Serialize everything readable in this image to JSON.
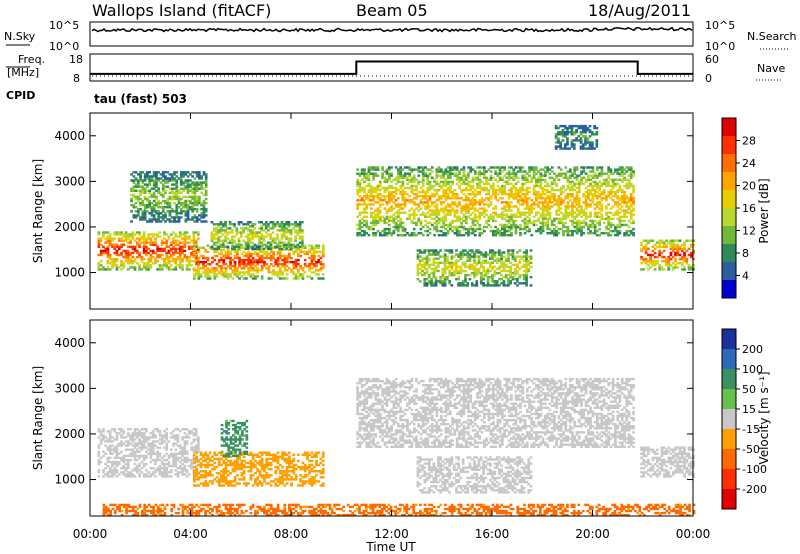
{
  "header": {
    "title": "Wallops Island (fitACF)",
    "beam": "Beam 05",
    "date": "18/Aug/2011"
  },
  "noise_panel": {
    "left_label": "N.Sky",
    "right_label": "N.Search",
    "left_ticks": [
      "10^5",
      "10^0"
    ],
    "right_ticks": [
      "10^5",
      "10^0"
    ]
  },
  "freq_panel": {
    "left_label": "Freq.",
    "left_unit": "[MHz]",
    "left_ticks": [
      "18",
      "8"
    ],
    "right_label": "Nave",
    "right_ticks": [
      "60",
      "0"
    ],
    "cpid_label": "CPID",
    "cpid_value": "tau (fast) 503"
  },
  "chart_data": [
    {
      "type": "heatmap",
      "name": "power",
      "xlabel": "",
      "ylabel": "Slant Range [km]",
      "xlim": [
        0,
        24
      ],
      "ylim": [
        200,
        4500
      ],
      "yticks": [
        "1000",
        "2000",
        "3000",
        "4000"
      ],
      "colorbar": {
        "label": "Power [dB]",
        "ticks": [
          "28",
          "24",
          "20",
          "16",
          "12",
          "8",
          "4"
        ],
        "colors": [
          "#e00000",
          "#ff3000",
          "#ff7000",
          "#ffa500",
          "#e8d000",
          "#b8d830",
          "#70b838",
          "#2e8b57",
          "#2a5e9c",
          "#0000cd"
        ]
      },
      "echo_regions": [
        {
          "t": [
            0.3,
            4.3
          ],
          "range": [
            1050,
            1900
          ],
          "peak_db": 28
        },
        {
          "t": [
            1.6,
            4.6
          ],
          "range": [
            2100,
            3200
          ],
          "peak_db": 12
        },
        {
          "t": [
            4.1,
            9.3
          ],
          "range": [
            850,
            1600
          ],
          "peak_db": 28
        },
        {
          "t": [
            4.8,
            8.4
          ],
          "range": [
            1500,
            2100
          ],
          "peak_db": 16
        },
        {
          "t": [
            10.6,
            21.6
          ],
          "range": [
            1800,
            3300
          ],
          "peak_db": 20
        },
        {
          "t": [
            13.0,
            17.5
          ],
          "range": [
            700,
            1500
          ],
          "peak_db": 16
        },
        {
          "t": [
            18.5,
            20.2
          ],
          "range": [
            3700,
            4200
          ],
          "peak_db": 8
        },
        {
          "t": [
            21.9,
            24.0
          ],
          "range": [
            1050,
            1700
          ],
          "peak_db": 28
        }
      ]
    },
    {
      "type": "heatmap",
      "name": "velocity",
      "xlabel": "Time UT",
      "ylabel": "Slant Range [km]",
      "xlim": [
        0,
        24
      ],
      "ylim": [
        200,
        4500
      ],
      "xticks": [
        "00:00",
        "04:00",
        "08:00",
        "12:00",
        "16:00",
        "20:00",
        "00:00"
      ],
      "yticks": [
        "1000",
        "2000",
        "3000",
        "4000"
      ],
      "colorbar": {
        "label": "Velocity [m s⁻¹]",
        "ticks": [
          "200",
          "100",
          "50",
          "15",
          "-15",
          "-50",
          "-100",
          "-200"
        ],
        "colors": [
          "#1c2f9a",
          "#2a6ab8",
          "#3a9060",
          "#66c24a",
          "#c8c8c8",
          "#ffa000",
          "#ff6a00",
          "#ff3000",
          "#e00000"
        ]
      },
      "echo_regions": [
        {
          "t": [
            0.3,
            4.3
          ],
          "range": [
            1050,
            2100
          ],
          "velocity": 0
        },
        {
          "t": [
            4.1,
            9.3
          ],
          "range": [
            850,
            1600
          ],
          "velocity": -30
        },
        {
          "t": [
            5.2,
            6.2
          ],
          "range": [
            1500,
            2300
          ],
          "velocity": 40
        },
        {
          "t": [
            10.6,
            21.6
          ],
          "range": [
            1700,
            3200
          ],
          "velocity": 0
        },
        {
          "t": [
            13.0,
            17.5
          ],
          "range": [
            700,
            1500
          ],
          "velocity": 0
        },
        {
          "t": [
            0.5,
            24.0
          ],
          "range": [
            200,
            450
          ],
          "velocity": -60
        },
        {
          "t": [
            21.9,
            24.0
          ],
          "range": [
            1050,
            1700
          ],
          "velocity": 0
        }
      ]
    },
    {
      "type": "line",
      "name": "frequency",
      "x": [
        0.0,
        10.6,
        10.6,
        21.8,
        21.8,
        24.0
      ],
      "y": [
        10.2,
        10.2,
        15.6,
        15.6,
        10.2,
        10.2
      ],
      "ylim": [
        8,
        18
      ]
    }
  ]
}
